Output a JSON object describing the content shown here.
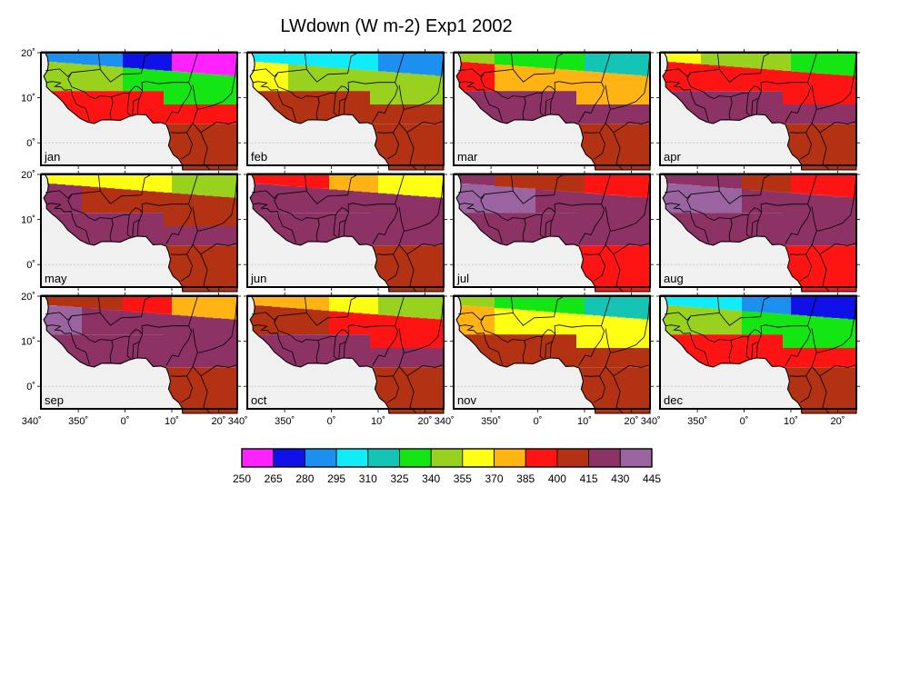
{
  "title": "LWdown (W m-2) Exp1 2002",
  "months": [
    "jan",
    "feb",
    "mar",
    "apr",
    "may",
    "jun",
    "jul",
    "aug",
    "sep",
    "oct",
    "nov",
    "dec"
  ],
  "x_tick_labels": [
    "340˚",
    "350˚",
    "0˚",
    "10˚",
    "20˚"
  ],
  "y_tick_labels": [
    "20˚",
    "10˚",
    "0˚"
  ],
  "colors": {
    "ocean": "#f0f0f0",
    "frame": "#000000",
    "gridline": "#b8b8b8"
  },
  "colorbar": {
    "ticks": [
      "250",
      "265",
      "280",
      "295",
      "310",
      "325",
      "340",
      "355",
      "370",
      "385",
      "400",
      "415",
      "430",
      "445"
    ],
    "colors": [
      "#ff22ff",
      "#1010e8",
      "#1c90f0",
      "#10ecf8",
      "#14c4b4",
      "#14e614",
      "#98d21e",
      "#ffff14",
      "#ffb414",
      "#ff1414",
      "#b43214",
      "#8c3264",
      "#9a64a0"
    ]
  },
  "chart_data": {
    "type": "heatmap",
    "title": "LWdown (W m-2) Exp1 2002",
    "panels": [
      "jan",
      "feb",
      "mar",
      "apr",
      "may",
      "jun",
      "jul",
      "aug",
      "sep",
      "oct",
      "nov",
      "dec"
    ],
    "x_ticks": [
      "340˚",
      "350˚",
      "0˚",
      "10˚",
      "20˚"
    ],
    "y_ticks": [
      "20˚",
      "10˚",
      "0˚"
    ],
    "xlim": [
      -18,
      24
    ],
    "ylim": [
      -5,
      20
    ],
    "levels": [
      250,
      265,
      280,
      295,
      310,
      325,
      340,
      355,
      370,
      385,
      400,
      415,
      430,
      445
    ],
    "monthly_profile": [
      {
        "month": "jan",
        "north": 275,
        "sahel": 335,
        "coast": 395,
        "south": 412
      },
      {
        "month": "feb",
        "north": 295,
        "sahel": 345,
        "coast": 400,
        "south": 412
      },
      {
        "month": "mar",
        "north": 330,
        "sahel": 375,
        "coast": 418,
        "south": 412
      },
      {
        "month": "apr",
        "north": 345,
        "sahel": 385,
        "coast": 422,
        "south": 410
      },
      {
        "month": "may",
        "north": 355,
        "sahel": 405,
        "coast": 422,
        "south": 408
      },
      {
        "month": "jun",
        "north": 380,
        "sahel": 415,
        "coast": 420,
        "south": 400
      },
      {
        "month": "jul",
        "north": 405,
        "sahel": 425,
        "coast": 420,
        "south": 395
      },
      {
        "month": "aug",
        "north": 410,
        "sahel": 428,
        "coast": 422,
        "south": 398
      },
      {
        "month": "sep",
        "north": 395,
        "sahel": 420,
        "coast": 420,
        "south": 408
      },
      {
        "month": "oct",
        "north": 365,
        "sahel": 395,
        "coast": 418,
        "south": 412
      },
      {
        "month": "nov",
        "north": 330,
        "sahel": 360,
        "coast": 410,
        "south": 414
      },
      {
        "month": "dec",
        "north": 290,
        "sahel": 335,
        "coast": 398,
        "south": 414
      }
    ]
  }
}
